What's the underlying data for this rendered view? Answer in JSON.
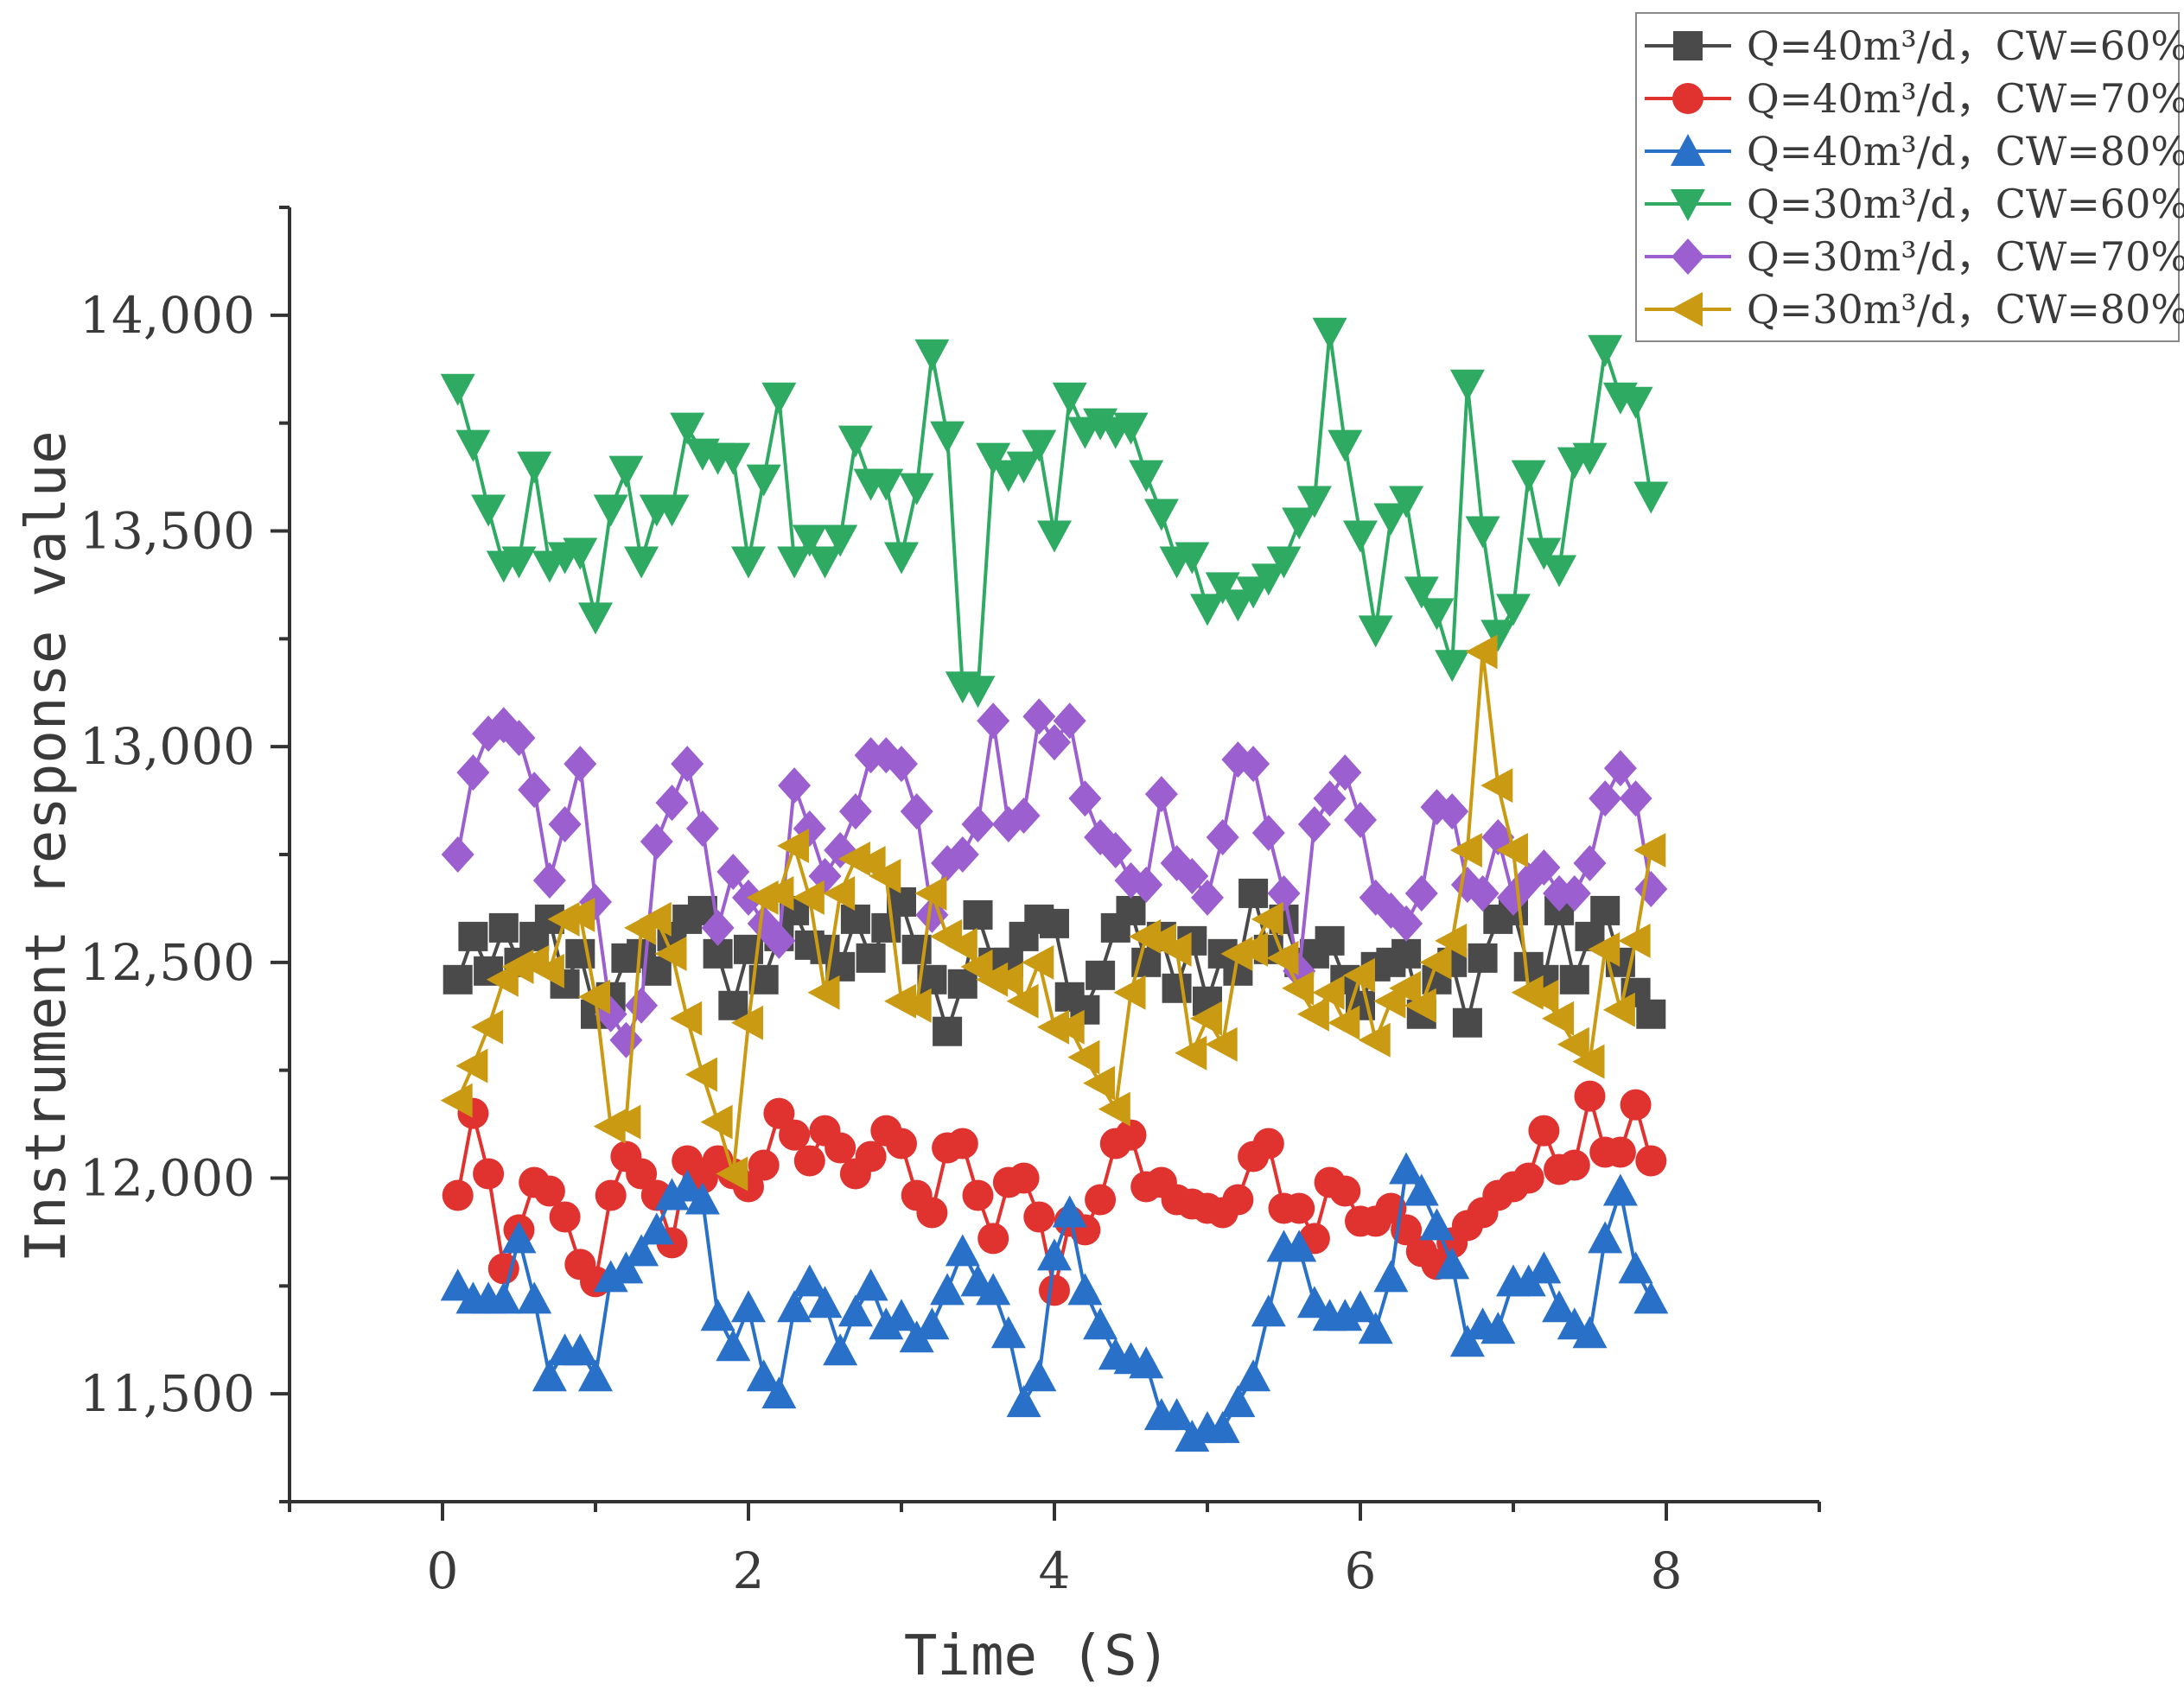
{
  "chart_data": {
    "type": "line",
    "xlabel": "Time (S)",
    "ylabel": "Instrument response value",
    "xlim": [
      -1,
      9
    ],
    "ylim": [
      11250,
      14250
    ],
    "xticks": [
      0,
      2,
      4,
      6,
      8
    ],
    "xtick_labels": [
      "0",
      "2",
      "4",
      "6",
      "8"
    ],
    "yticks": [
      11500,
      12000,
      12500,
      13000,
      13500,
      14000
    ],
    "ytick_labels": [
      "11,500",
      "12,000",
      "12,500",
      "13,000",
      "13,500",
      "14,000"
    ],
    "legend_position": "top-right",
    "x": [
      0.1,
      0.2,
      0.3,
      0.4,
      0.5,
      0.6,
      0.7,
      0.8,
      0.9,
      1.0,
      1.1,
      1.2,
      1.3,
      1.4,
      1.5,
      1.6,
      1.7,
      1.8,
      1.9,
      2.0,
      2.1,
      2.2,
      2.3,
      2.4,
      2.5,
      2.6,
      2.7,
      2.8,
      2.9,
      3.0,
      3.1,
      3.2,
      3.3,
      3.4,
      3.5,
      3.6,
      3.7,
      3.8,
      3.9,
      4.0,
      4.1,
      4.2,
      4.3,
      4.4,
      4.5,
      4.6,
      4.7,
      4.8,
      4.9,
      5.0,
      5.1,
      5.2,
      5.3,
      5.4,
      5.5,
      5.6,
      5.7,
      5.8,
      5.9,
      6.0,
      6.1,
      6.2,
      6.3,
      6.4,
      6.5,
      6.6,
      6.7,
      6.8,
      6.9,
      7.0,
      7.1,
      7.2,
      7.3,
      7.4,
      7.5,
      7.6,
      7.7,
      7.8,
      7.9
    ],
    "series": [
      {
        "name": "Q=40m³/d，CW=60%",
        "color": "#4a4a4a",
        "marker": "square",
        "values": [
          12460,
          12560,
          12480,
          12580,
          12500,
          12560,
          12600,
          12450,
          12520,
          12380,
          12420,
          12510,
          12520,
          12480,
          12560,
          12600,
          12620,
          12520,
          12400,
          12530,
          12460,
          12560,
          12620,
          12540,
          12530,
          12490,
          12600,
          12510,
          12580,
          12640,
          12530,
          12460,
          12340,
          12450,
          12610,
          12500,
          12500,
          12560,
          12600,
          12590,
          12420,
          12390,
          12470,
          12580,
          12620,
          12500,
          12560,
          12440,
          12550,
          12410,
          12520,
          12480,
          12660,
          12530,
          12600,
          12500,
          12520,
          12550,
          12460,
          12400,
          12490,
          12500,
          12520,
          12380,
          12460,
          12500,
          12360,
          12510,
          12600,
          12620,
          12490,
          12460,
          12620,
          12460,
          12560,
          12620,
          12500,
          12430,
          12380
        ]
      },
      {
        "name": "Q=40m³/d，CW=70%",
        "color": "#e0322f",
        "marker": "circle",
        "values": [
          11960,
          12150,
          12010,
          11790,
          11880,
          11990,
          11970,
          11910,
          11800,
          11760,
          11960,
          12050,
          12010,
          11960,
          11850,
          12040,
          12000,
          12040,
          12010,
          11980,
          12030,
          12150,
          12100,
          12040,
          12110,
          12070,
          12010,
          12050,
          12110,
          12080,
          11960,
          11920,
          12070,
          12080,
          11960,
          11860,
          11990,
          12000,
          11910,
          11740,
          11900,
          11880,
          11950,
          12080,
          12100,
          11980,
          11990,
          11950,
          11940,
          11930,
          11920,
          11950,
          12050,
          12080,
          11930,
          11930,
          11860,
          11990,
          11970,
          11900,
          11900,
          11930,
          11880,
          11830,
          11800,
          11850,
          11890,
          11920,
          11960,
          11980,
          12000,
          12110,
          12020,
          12030,
          12190,
          12060,
          12060,
          12170,
          12040
        ]
      },
      {
        "name": "Q=40m³/d，CW=80%",
        "color": "#2970c8",
        "marker": "triangle-up",
        "values": [
          11750,
          11720,
          11720,
          11720,
          11860,
          11720,
          11540,
          11600,
          11600,
          11540,
          11770,
          11790,
          11830,
          11880,
          11960,
          11980,
          11950,
          11680,
          11610,
          11700,
          11540,
          11500,
          11700,
          11760,
          11710,
          11600,
          11690,
          11750,
          11660,
          11680,
          11630,
          11660,
          11740,
          11830,
          11760,
          11740,
          11640,
          11480,
          11540,
          11820,
          11920,
          11740,
          11660,
          11590,
          11580,
          11570,
          11450,
          11450,
          11400,
          11420,
          11420,
          11480,
          11540,
          11690,
          11840,
          11840,
          11710,
          11680,
          11680,
          11700,
          11650,
          11770,
          12020,
          11970,
          11890,
          11800,
          11620,
          11660,
          11650,
          11760,
          11760,
          11790,
          11700,
          11660,
          11640,
          11860,
          11970,
          11790,
          11720
        ]
      },
      {
        "name": "Q=30m³/d，CW=60%",
        "color": "#2eaa63",
        "marker": "triangle-down",
        "values": [
          13830,
          13700,
          13550,
          13420,
          13430,
          13650,
          13420,
          13440,
          13450,
          13300,
          13550,
          13640,
          13430,
          13550,
          13550,
          13740,
          13680,
          13670,
          13670,
          13430,
          13620,
          13810,
          13430,
          13480,
          13430,
          13480,
          13710,
          13610,
          13610,
          13440,
          13600,
          13910,
          13720,
          13140,
          13130,
          13670,
          13630,
          13650,
          13700,
          13490,
          13810,
          13730,
          13750,
          13730,
          13740,
          13630,
          13540,
          13430,
          13440,
          13320,
          13370,
          13330,
          13360,
          13390,
          13430,
          13520,
          13570,
          13960,
          13700,
          13490,
          13270,
          13530,
          13570,
          13360,
          13310,
          13190,
          13840,
          13500,
          13260,
          13320,
          13630,
          13450,
          13410,
          13660,
          13670,
          13920,
          13810,
          13800,
          13580
        ]
      },
      {
        "name": "Q=30m³/d，CW=70%",
        "color": "#9b5fd0",
        "marker": "diamond",
        "values": [
          12750,
          12940,
          13030,
          13050,
          13020,
          12900,
          12690,
          12820,
          12960,
          12640,
          12380,
          12320,
          12400,
          12780,
          12870,
          12960,
          12810,
          12580,
          12710,
          12650,
          12590,
          12550,
          12910,
          12810,
          12700,
          12760,
          12850,
          12980,
          12980,
          12960,
          12850,
          12610,
          12730,
          12750,
          12820,
          13060,
          12820,
          12840,
          13070,
          13010,
          13060,
          12880,
          12790,
          12760,
          12690,
          12680,
          12890,
          12730,
          12700,
          12650,
          12790,
          12970,
          12960,
          12800,
          12660,
          12480,
          12820,
          12880,
          12940,
          12830,
          12650,
          12620,
          12590,
          12660,
          12860,
          12850,
          12680,
          12660,
          12790,
          12650,
          12690,
          12720,
          12660,
          12660,
          12730,
          12880,
          12950,
          12880,
          12670
        ]
      },
      {
        "name": "Q=30m³/d，CW=80%",
        "color": "#c99a12",
        "marker": "triangle-left",
        "values": [
          12180,
          12260,
          12350,
          12460,
          12490,
          12500,
          12480,
          12600,
          12610,
          12420,
          12120,
          12130,
          12580,
          12600,
          12520,
          12370,
          12240,
          12130,
          12010,
          12360,
          12650,
          12660,
          12770,
          12650,
          12430,
          12660,
          12740,
          12730,
          12700,
          12410,
          12400,
          12660,
          12560,
          12540,
          12490,
          12460,
          12460,
          12410,
          12500,
          12350,
          12350,
          12280,
          12220,
          12160,
          12430,
          12560,
          12550,
          12530,
          12290,
          12370,
          12310,
          12520,
          12530,
          12600,
          12510,
          12440,
          12380,
          12430,
          12360,
          12470,
          12320,
          12410,
          12440,
          12400,
          12500,
          12550,
          12760,
          13220,
          12910,
          12760,
          12430,
          12420,
          12370,
          12310,
          12270,
          12530,
          12390,
          12550,
          12760
        ]
      }
    ]
  }
}
